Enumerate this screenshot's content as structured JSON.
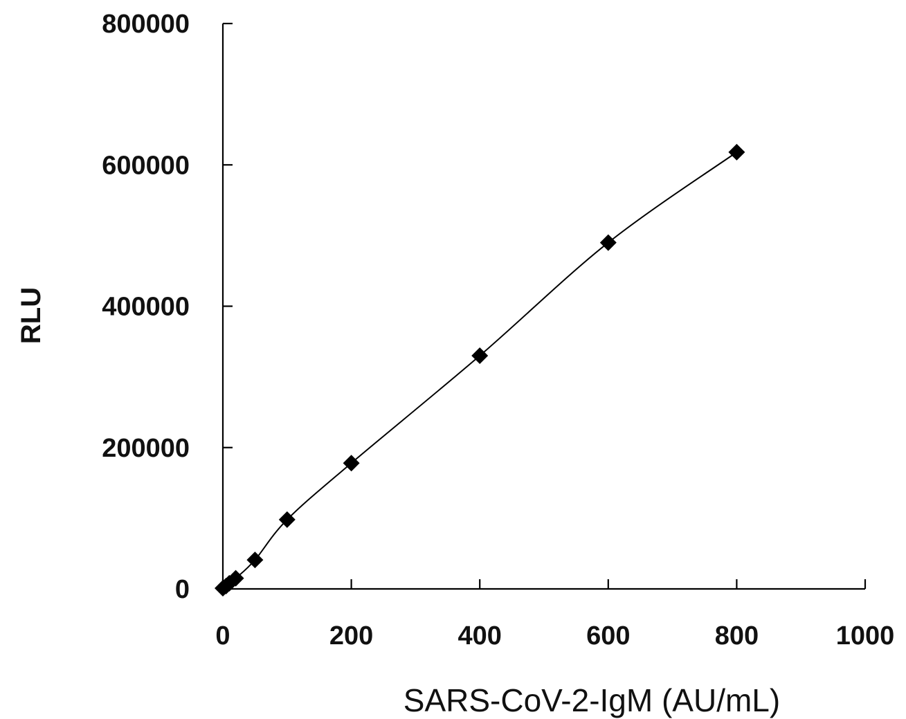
{
  "chart_data": {
    "type": "scatter",
    "title": "",
    "xlabel": "SARS-CoV-2-IgM (AU/mL)",
    "ylabel": "RLU",
    "xlim": [
      0,
      1000
    ],
    "ylim": [
      0,
      800000
    ],
    "x_ticks": [
      0,
      200,
      400,
      600,
      800,
      1000
    ],
    "y_ticks": [
      0,
      200000,
      400000,
      600000,
      800000
    ],
    "x_tick_labels": [
      "0",
      "200",
      "400",
      "600",
      "800",
      "1000"
    ],
    "y_tick_labels": [
      "0",
      "200000",
      "400000",
      "600000",
      "800000"
    ],
    "grid": false,
    "legend": "none",
    "marker": "diamond",
    "marker_color": "#000000",
    "trendline": "smooth curve through points",
    "series": [
      {
        "x": [
          0,
          5,
          10,
          20,
          50,
          100,
          200,
          400,
          600,
          800
        ],
        "y": [
          1000,
          4000,
          8000,
          15000,
          41000,
          98000,
          178000,
          330000,
          490000,
          618000
        ]
      }
    ]
  }
}
